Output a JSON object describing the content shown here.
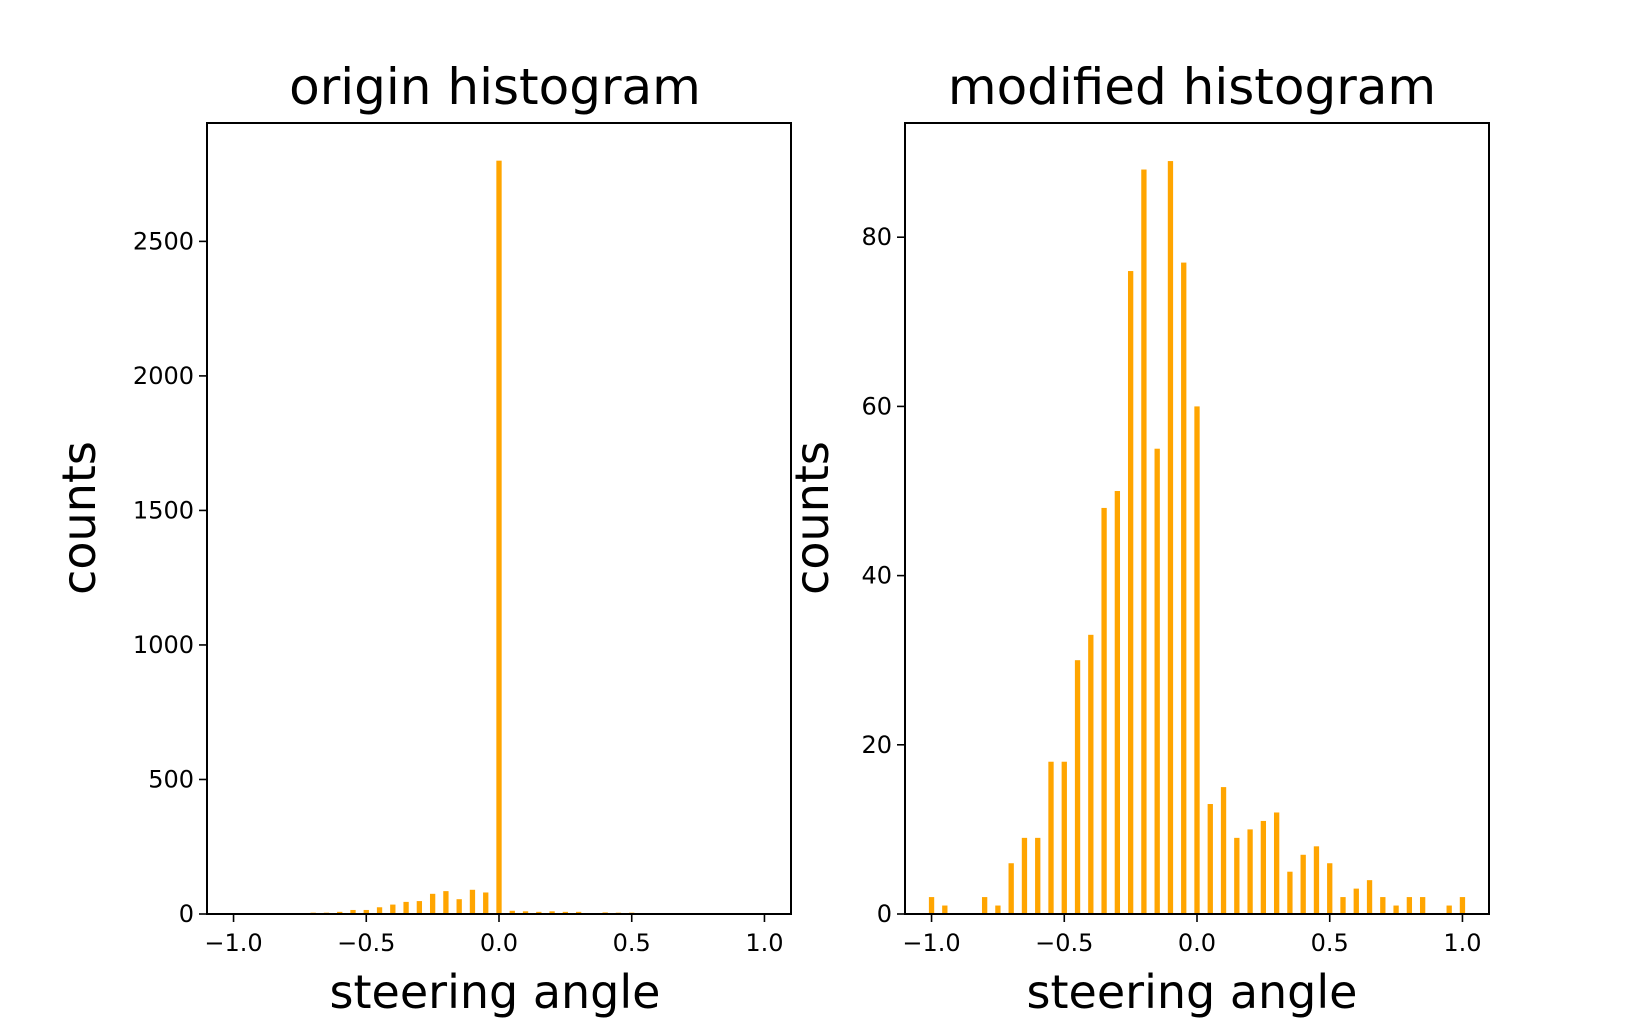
{
  "chart_data": [
    {
      "type": "bar",
      "title": "origin histogram",
      "xlabel": "steering angle",
      "ylabel": "counts",
      "xlim": [
        -1.1,
        1.1
      ],
      "ylim": [
        0,
        2940
      ],
      "xticks": [
        "−1.0",
        "−0.5",
        "0.0",
        "0.5",
        "1.0"
      ],
      "xtick_values": [
        -1.0,
        -0.5,
        0.0,
        0.5,
        1.0
      ],
      "yticks": [
        "0",
        "500",
        "1000",
        "1500",
        "2000",
        "2500"
      ],
      "ytick_values": [
        0,
        500,
        1000,
        1500,
        2000,
        2500
      ],
      "bar_color": "#ffa500",
      "bar_width": 0.02,
      "x": [
        -0.7,
        -0.65,
        -0.6,
        -0.55,
        -0.5,
        -0.45,
        -0.4,
        -0.35,
        -0.3,
        -0.25,
        -0.2,
        -0.15,
        -0.1,
        -0.05,
        0.0,
        0.05,
        0.1,
        0.15,
        0.2,
        0.25,
        0.3,
        0.4,
        0.45,
        0.5
      ],
      "values": [
        5,
        5,
        8,
        15,
        15,
        25,
        35,
        45,
        48,
        75,
        85,
        55,
        90,
        80,
        2800,
        12,
        10,
        8,
        10,
        8,
        8,
        6,
        5,
        5
      ]
    },
    {
      "type": "bar",
      "title": "modified histogram",
      "xlabel": "steering angle",
      "ylabel": "counts",
      "xlim": [
        -1.1,
        1.1
      ],
      "ylim": [
        0,
        93.5
      ],
      "xticks": [
        "−1.0",
        "−0.5",
        "0.0",
        "0.5",
        "1.0"
      ],
      "xtick_values": [
        -1.0,
        -0.5,
        0.0,
        0.5,
        1.0
      ],
      "yticks": [
        "0",
        "20",
        "40",
        "60",
        "80"
      ],
      "ytick_values": [
        0,
        20,
        40,
        60,
        80
      ],
      "bar_color": "#ffa500",
      "bar_width": 0.02,
      "x": [
        -1.0,
        -0.95,
        -0.8,
        -0.75,
        -0.7,
        -0.65,
        -0.6,
        -0.55,
        -0.5,
        -0.45,
        -0.4,
        -0.35,
        -0.3,
        -0.25,
        -0.2,
        -0.15,
        -0.1,
        -0.05,
        0.0,
        0.05,
        0.1,
        0.15,
        0.2,
        0.25,
        0.3,
        0.35,
        0.4,
        0.45,
        0.5,
        0.55,
        0.6,
        0.65,
        0.7,
        0.75,
        0.8,
        0.85,
        0.95,
        1.0
      ],
      "values": [
        2,
        1,
        2,
        1,
        6,
        9,
        9,
        18,
        18,
        30,
        33,
        48,
        50,
        76,
        88,
        55,
        89,
        77,
        60,
        13,
        15,
        9,
        10,
        11,
        12,
        5,
        7,
        8,
        6,
        2,
        3,
        4,
        2,
        1,
        2,
        2,
        1,
        2
      ]
    }
  ]
}
